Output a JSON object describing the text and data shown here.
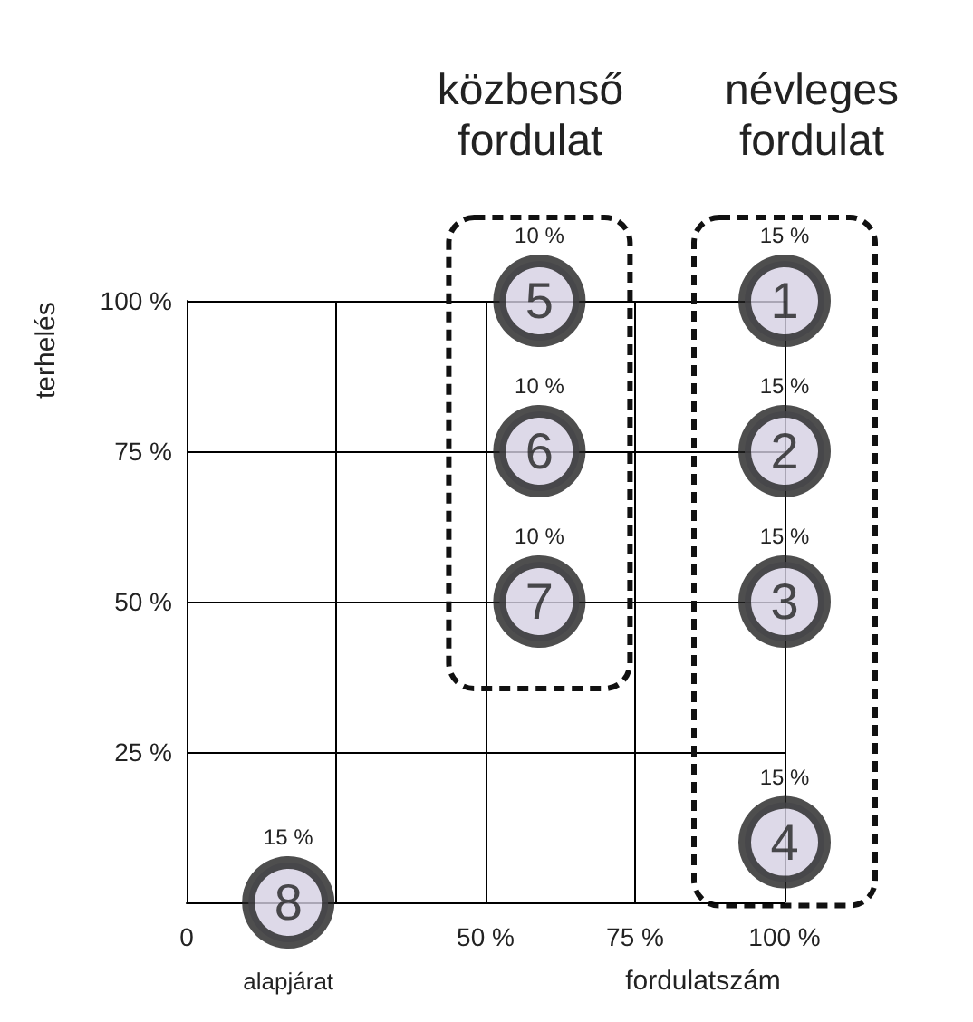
{
  "chart_data": {
    "type": "scatter",
    "series": [
      {
        "name": "1",
        "color": "#d4d0e2",
        "x": [
          100
        ],
        "values": [
          100
        ]
      },
      {
        "name": "2",
        "color": "#d4d0e2",
        "x": [
          100
        ],
        "values": [
          75
        ]
      },
      {
        "name": "3",
        "color": "#d4d0e2",
        "x": [
          100
        ],
        "values": [
          50
        ]
      },
      {
        "name": "4",
        "color": "#d4d0e2",
        "x": [
          100
        ],
        "values": [
          10
        ]
      },
      {
        "name": "5",
        "color": "#d4d0e2",
        "x": [
          59
        ],
        "values": [
          100
        ]
      },
      {
        "name": "6",
        "color": "#d4d0e2",
        "x": [
          59
        ],
        "values": [
          75
        ]
      },
      {
        "name": "7",
        "color": "#d4d0e2",
        "x": [
          59
        ],
        "values": [
          50
        ]
      },
      {
        "name": "8",
        "color": "#d4d0e2",
        "x": [
          17
        ],
        "values": [
          0
        ]
      }
    ],
    "marker": "circle",
    "grid": true,
    "legend": false,
    "xlim": [
      0,
      100
    ],
    "ylim": [
      0,
      100
    ],
    "xticks": [
      0,
      {
        "value": 25,
        "label": null
      },
      {
        "value": 50,
        "label": "50 %"
      },
      {
        "value": 75,
        "label": "75 %"
      },
      {
        "value": 100,
        "label": "100 %"
      }
    ],
    "yticks": [
      {
        "value": 0,
        "label": null
      },
      {
        "value": 25,
        "label": "25 %"
      },
      {
        "value": 50,
        "label": "50 %"
      },
      {
        "value": 75,
        "label": "75 %"
      },
      {
        "value": 100,
        "label": "100 %"
      }
    ],
    "xlabel": "fordulatszám",
    "ylabel": "terhelés",
    "annotations": [
      {
        "text": "15 %",
        "x": 100,
        "y": 100
      },
      {
        "text": "15 %",
        "x": 100,
        "y": 75
      },
      {
        "text": "15 %",
        "x": 100,
        "y": 50
      },
      {
        "text": "15 %",
        "x": 100,
        "y": 10
      },
      {
        "text": "10 %",
        "x": 59,
        "y": 100
      },
      {
        "text": "10 %",
        "x": 59,
        "y": 75
      },
      {
        "text": "10 %",
        "x": 59,
        "y": 50
      },
      {
        "text": "15 %",
        "x": 17,
        "y": 0
      },
      "közbenső\nfordulat",
      "névleges\nfordulat",
      "alapjárat"
    ]
  }
}
